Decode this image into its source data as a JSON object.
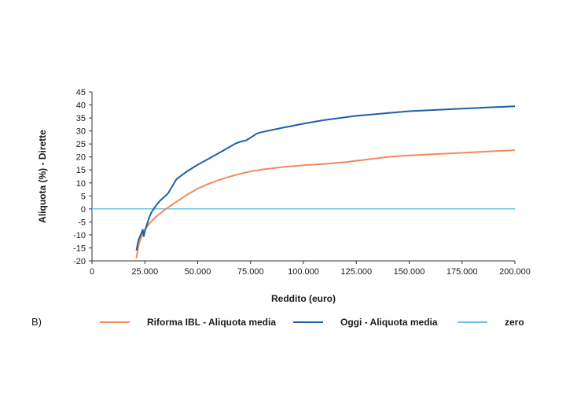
{
  "panel_label": "B)",
  "colors": {
    "riforma": "#f08a5a",
    "oggi": "#1f5fa8",
    "zero": "#6cc3ea",
    "axis": "#333333"
  },
  "chart_data": {
    "type": "line",
    "xlabel": "Reddito (euro)",
    "ylabel": "Aliquota (%) - Dirette",
    "xlim": [
      0,
      200000
    ],
    "ylim": [
      -20,
      45
    ],
    "x_ticks": [
      0,
      25000,
      50000,
      75000,
      100000,
      125000,
      150000,
      175000,
      200000
    ],
    "x_tick_labels": [
      "0",
      "25.000",
      "50.000",
      "75.000",
      "100.000",
      "125.000",
      "150.000",
      "175.000",
      "200.000"
    ],
    "y_ticks": [
      -20,
      -15,
      -10,
      -5,
      0,
      5,
      10,
      15,
      20,
      25,
      30,
      35,
      40,
      45
    ],
    "y_tick_labels": [
      "-20",
      "-15",
      "-10",
      "-5",
      "0",
      "5",
      "10",
      "15",
      "20",
      "25",
      "30",
      "35",
      "40",
      "45"
    ],
    "grid": false,
    "legend_position": "bottom",
    "series": [
      {
        "name": "Riforma IBL - Aliquota media",
        "color_key": "riforma",
        "x": [
          21000,
          22000,
          23000,
          24000,
          25000,
          27000,
          30000,
          35000,
          40000,
          45000,
          50000,
          55000,
          60000,
          65000,
          70000,
          75000,
          80000,
          90000,
          100000,
          110000,
          120000,
          130000,
          140000,
          150000,
          160000,
          170000,
          180000,
          190000,
          200000
        ],
        "y": [
          -19,
          -14,
          -11.5,
          -9.5,
          -8,
          -5.8,
          -3.2,
          0,
          2.8,
          5.5,
          7.8,
          9.6,
          11.1,
          12.4,
          13.5,
          14.4,
          15.1,
          16.1,
          16.8,
          17.3,
          18,
          19,
          20,
          20.6,
          21,
          21.4,
          21.8,
          22.2,
          22.6
        ]
      },
      {
        "name": "Oggi - Aliquota media",
        "color_key": "oggi",
        "x": [
          21000,
          22000,
          23000,
          24000,
          24500,
          25000,
          26000,
          27000,
          28000,
          30000,
          32000,
          34000,
          36000,
          40000,
          45000,
          50000,
          55000,
          60000,
          65000,
          68000,
          70000,
          73000,
          75000,
          78000,
          80000,
          90000,
          100000,
          110000,
          125000,
          150000,
          175000,
          200000
        ],
        "y": [
          -16,
          -12,
          -10,
          -8,
          -10.5,
          -8.5,
          -6,
          -3.5,
          -1.5,
          1,
          3,
          4.5,
          6,
          11.5,
          14.5,
          17,
          19.2,
          21.5,
          23.8,
          25.2,
          25.8,
          26.4,
          27.4,
          29,
          29.5,
          31.2,
          32.8,
          34.2,
          35.8,
          37.6,
          38.6,
          39.5
        ]
      },
      {
        "name": "zero",
        "color_key": "zero",
        "x": [
          0,
          200000
        ],
        "y": [
          0,
          0
        ]
      }
    ]
  }
}
